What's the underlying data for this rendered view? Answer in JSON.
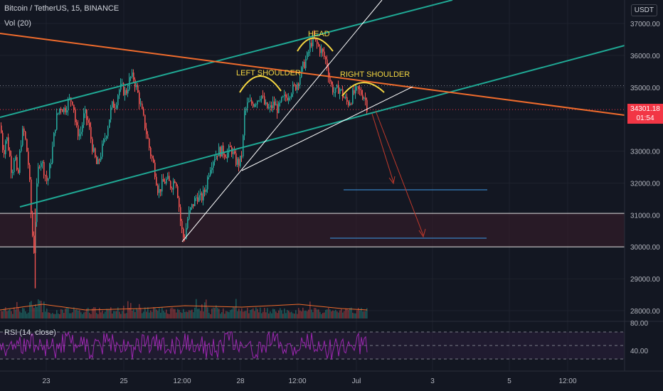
{
  "header": {
    "symbol_title": "Bitcoin / TetherUS, 15, BINANCE",
    "volume_label": "Vol (20)",
    "currency_badge": "USDT"
  },
  "current_price": {
    "value": "34301.18",
    "countdown": "01:54"
  },
  "rsi": {
    "label": "RSI (14, close)",
    "ticks": [
      "80.00",
      "40.00"
    ]
  },
  "colors": {
    "background": "#131722",
    "up": "#26a69a",
    "down": "#ef5350",
    "channel": "#1fa894",
    "orange_trend": "#ef6b2c",
    "annotation": "#f5d742",
    "rsi": "#9c27b0",
    "target": "#3d9ae8",
    "zone": "#3a1e2a"
  },
  "chart_data": {
    "type": "candlestick",
    "title": "Bitcoin / TetherUS, 15, BINANCE",
    "x_tick_labels": [
      "23",
      "25",
      "12:00",
      "28",
      "12:00",
      "Jul",
      "3",
      "5",
      "12:00"
    ],
    "y_tick_labels": [
      "37000.00",
      "36000.00",
      "35000.00",
      "34000.00",
      "33000.00",
      "32000.00",
      "31000.00",
      "30000.00",
      "29000.00",
      "28000.00"
    ],
    "ylim": [
      27600,
      37600
    ],
    "price_path": [
      [
        0,
        33800
      ],
      [
        4,
        32900
      ],
      [
        8,
        33500
      ],
      [
        12,
        33000
      ],
      [
        16,
        32300
      ],
      [
        20,
        33000
      ],
      [
        24,
        32000
      ],
      [
        28,
        33200
      ],
      [
        32,
        33700
      ],
      [
        36,
        33200
      ],
      [
        40,
        32400
      ],
      [
        44,
        30600
      ],
      [
        47,
        29900
      ],
      [
        52,
        32300
      ],
      [
        56,
        32800
      ],
      [
        60,
        32500
      ],
      [
        66,
        32000
      ],
      [
        72,
        32900
      ],
      [
        78,
        34000
      ],
      [
        84,
        34400
      ],
      [
        90,
        34300
      ],
      [
        96,
        34600
      ],
      [
        102,
        34600
      ],
      [
        106,
        33700
      ],
      [
        112,
        33500
      ],
      [
        118,
        34200
      ],
      [
        124,
        33800
      ],
      [
        130,
        33000
      ],
      [
        136,
        32500
      ],
      [
        142,
        33000
      ],
      [
        150,
        33700
      ],
      [
        156,
        34400
      ],
      [
        162,
        34500
      ],
      [
        166,
        34900
      ],
      [
        170,
        35000
      ],
      [
        176,
        34800
      ],
      [
        182,
        35300
      ],
      [
        187,
        35300
      ],
      [
        192,
        34900
      ],
      [
        198,
        34300
      ],
      [
        204,
        33700
      ],
      [
        210,
        33000
      ],
      [
        216,
        32500
      ],
      [
        222,
        31700
      ],
      [
        228,
        32000
      ],
      [
        234,
        32100
      ],
      [
        240,
        31900
      ],
      [
        246,
        32200
      ],
      [
        250,
        31500
      ],
      [
        254,
        30600
      ],
      [
        258,
        30200
      ],
      [
        264,
        31000
      ],
      [
        270,
        31300
      ],
      [
        276,
        31600
      ],
      [
        282,
        31500
      ],
      [
        288,
        31800
      ],
      [
        294,
        32500
      ],
      [
        300,
        32800
      ],
      [
        306,
        33000
      ],
      [
        312,
        33000
      ],
      [
        318,
        32900
      ],
      [
        324,
        33100
      ],
      [
        330,
        32700
      ],
      [
        336,
        32600
      ],
      [
        340,
        33000
      ],
      [
        343,
        34200
      ],
      [
        348,
        34500
      ],
      [
        354,
        34500
      ],
      [
        360,
        34600
      ],
      [
        366,
        34800
      ],
      [
        372,
        34400
      ],
      [
        378,
        34300
      ],
      [
        384,
        34500
      ],
      [
        390,
        34300
      ],
      [
        396,
        34600
      ],
      [
        402,
        34700
      ],
      [
        408,
        34900
      ],
      [
        414,
        35000
      ],
      [
        420,
        35300
      ],
      [
        426,
        35700
      ],
      [
        432,
        36000
      ],
      [
        436,
        36400
      ],
      [
        440,
        36500
      ],
      [
        446,
        36300
      ],
      [
        452,
        36100
      ],
      [
        458,
        35800
      ],
      [
        464,
        35100
      ],
      [
        470,
        34800
      ],
      [
        476,
        35000
      ],
      [
        482,
        34700
      ],
      [
        488,
        34500
      ],
      [
        492,
        34600
      ],
      [
        496,
        34800
      ],
      [
        502,
        34900
      ],
      [
        508,
        34800
      ],
      [
        512,
        34700
      ],
      [
        516,
        34300
      ]
    ],
    "horizontal_levels": [
      {
        "name": "zone_top",
        "price": 31050
      },
      {
        "name": "zone_bottom",
        "price": 30000
      },
      {
        "name": "current_price",
        "price": 34301.18
      },
      {
        "name": "dotted_ref",
        "price": 35050
      }
    ],
    "target_levels": [
      {
        "price": 31780,
        "x_range": [
          483,
          685
        ]
      },
      {
        "price": 30270,
        "x_range": [
          464,
          684
        ]
      }
    ],
    "annotations": [
      {
        "text": "LEFT SHOULDER"
      },
      {
        "text": "HEAD"
      },
      {
        "text": "RIGHT SHOULDER"
      }
    ],
    "rsi_levels": {
      "upper": 70,
      "mid": 50,
      "lower": 30
    },
    "rsi_ylim": [
      20,
      85
    ]
  }
}
